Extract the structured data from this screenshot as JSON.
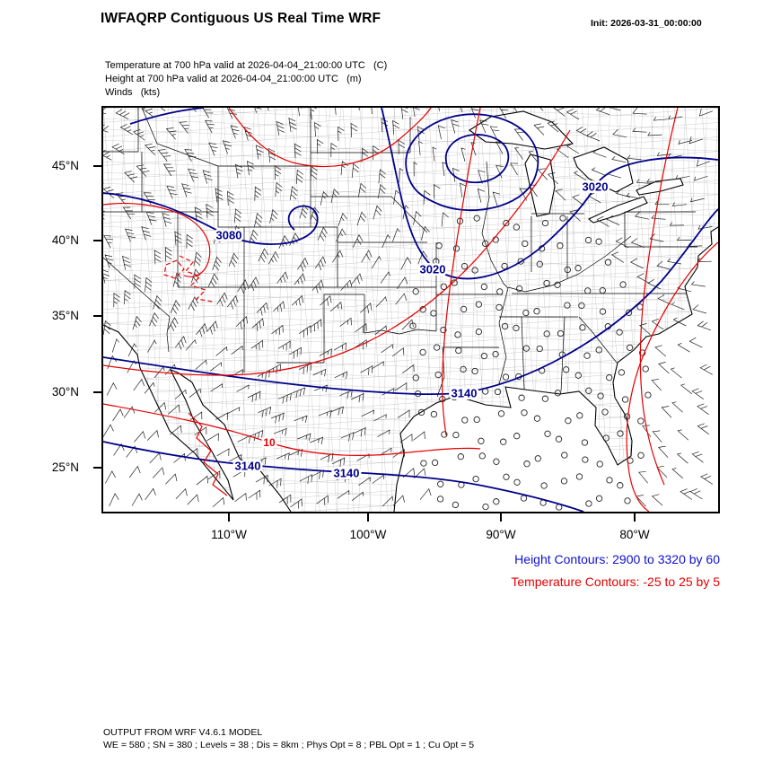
{
  "header": {
    "title": "IWFAQRP Contiguous US Real Time WRF",
    "init": "Init: 2026-03-31_00:00:00"
  },
  "fields": {
    "temperature": "Temperature at 700 hPa valid at 2026-04-04_21:00:00 UTC   (C)",
    "height": "Height at 700 hPa valid at 2026-04-04_21:00:00 UTC   (m)",
    "winds": "Winds   (kts)"
  },
  "axes": {
    "lat_ticks": [
      "45°N",
      "40°N",
      "35°N",
      "30°N",
      "25°N"
    ],
    "lon_ticks": [
      "110°W",
      "100°W",
      "90°W",
      "80°W"
    ]
  },
  "map": {
    "labels": [
      "3020",
      "3020",
      "3140",
      "3140",
      "3140",
      "3080",
      "10"
    ],
    "height_contour_color": "#00008b",
    "temperature_contour_color": "#e60000"
  },
  "legend": {
    "height": "Height Contours: 2900 to 3320 by 60",
    "temperature": "Temperature Contours: -25 to 25 by 5",
    "height_color": "#0f0fd2",
    "temperature_color": "#e60000"
  },
  "footer": {
    "line1": "OUTPUT FROM WRF V4.6.1 MODEL",
    "line2": "WE = 580 ; SN = 380 ; Levels = 38 ; Dis = 8km ; Phys Opt = 8 ; PBL Opt = 1 ; Cu Opt = 5"
  }
}
